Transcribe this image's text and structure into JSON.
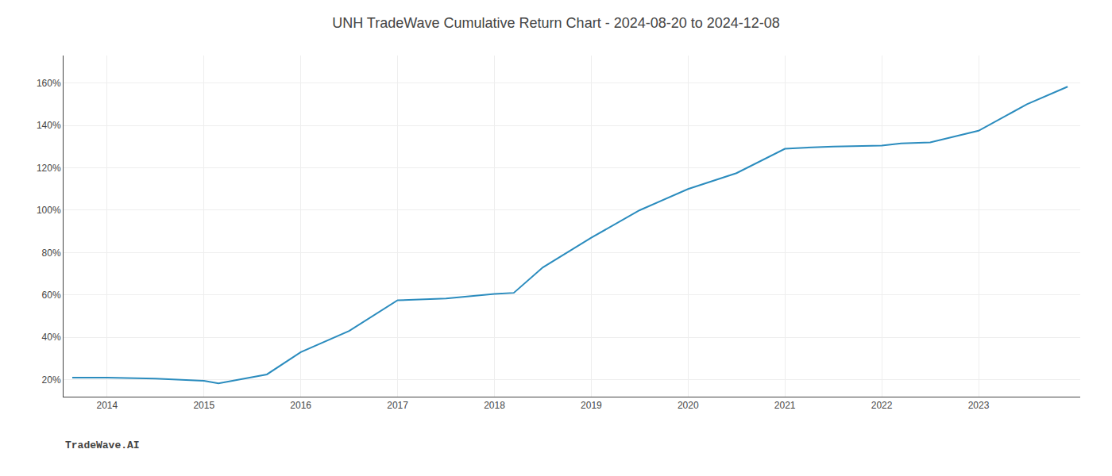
{
  "chart_data": {
    "type": "line",
    "title": "UNH TradeWave Cumulative Return Chart - 2024-08-20 to 2024-12-08",
    "annotations": [
      "TradeWave.AI"
    ],
    "x": [
      2013.64,
      2014.0,
      2014.5,
      2015.0,
      2015.15,
      2015.65,
      2016.0,
      2016.5,
      2017.0,
      2017.15,
      2017.5,
      2018.0,
      2018.2,
      2018.5,
      2019.0,
      2019.5,
      2020.0,
      2020.5,
      2021.0,
      2021.2,
      2021.5,
      2022.0,
      2022.2,
      2022.5,
      2023.0,
      2023.5,
      2023.92
    ],
    "values": [
      0.21,
      0.21,
      0.205,
      0.195,
      0.183,
      0.225,
      0.33,
      0.43,
      0.575,
      0.578,
      0.583,
      0.605,
      0.61,
      0.73,
      0.87,
      1.0,
      1.1,
      1.175,
      1.29,
      1.295,
      1.3,
      1.305,
      1.315,
      1.32,
      1.375,
      1.5,
      1.583
    ],
    "color": "#2b8cbe",
    "xlim": [
      2013.55,
      2024.05
    ],
    "xticks": [
      2014,
      2015,
      2016,
      2017,
      2018,
      2019,
      2020,
      2021,
      2022,
      2023
    ],
    "ylim": [
      0.12,
      1.73
    ],
    "yticks": [
      {
        "value": 0.2,
        "label": "20%"
      },
      {
        "value": 0.4,
        "label": "40%"
      },
      {
        "value": 0.6,
        "label": "60%"
      },
      {
        "value": 0.8,
        "label": "80%"
      },
      {
        "value": 1.0,
        "label": "100%"
      },
      {
        "value": 1.2,
        "label": "120%"
      },
      {
        "value": 1.4,
        "label": "140%"
      },
      {
        "value": 1.6,
        "label": "160%"
      }
    ],
    "grid": true
  }
}
